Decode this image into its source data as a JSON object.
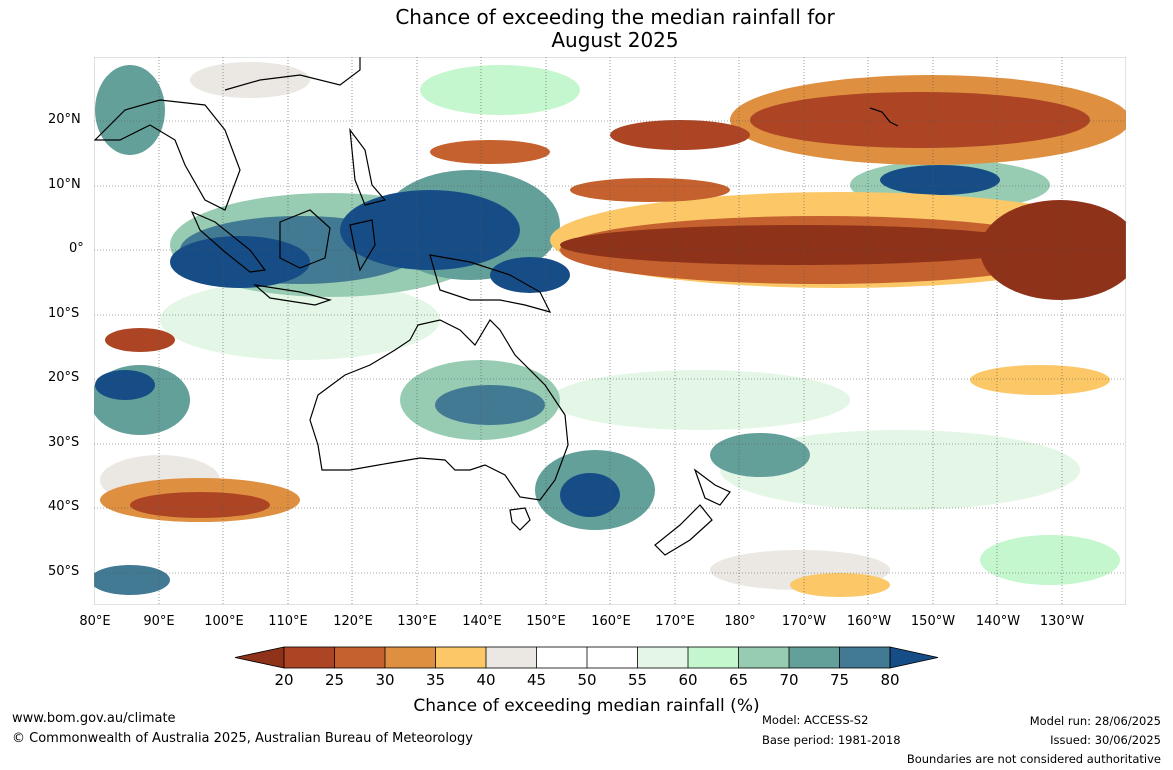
{
  "title": {
    "line1": "Chance of exceeding the median rainfall for",
    "line2": "August 2025"
  },
  "map": {
    "lat_labels": [
      "20°N",
      "10°N",
      "0°",
      "10°S",
      "20°S",
      "30°S",
      "40°S",
      "50°S"
    ],
    "lon_labels": [
      "80°E",
      "90°E",
      "100°E",
      "110°E",
      "120°E",
      "130°E",
      "140°E",
      "150°E",
      "160°E",
      "170°E",
      "180°",
      "170°W",
      "160°W",
      "150°W",
      "140°W",
      "130°W"
    ]
  },
  "colorbar": {
    "title": "Chance of exceeding median rainfall (%)",
    "ticks": [
      "20",
      "25",
      "30",
      "35",
      "40",
      "45",
      "50",
      "55",
      "60",
      "65",
      "70",
      "75",
      "80"
    ],
    "colors": {
      "below_20": "#8e3219",
      "c20_25": "#ad4524",
      "c25_30": "#c5612e",
      "c30_35": "#de9040",
      "c35_40": "#fbc767",
      "c40_45": "#ebe8e4",
      "c45_50": "#ffffff",
      "c50_55": "#ffffff",
      "c55_60": "#e4f7e7",
      "c60_65": "#c4f7cd",
      "c65_70": "#98ccb2",
      "c70_75": "#64a09a",
      "c75_80": "#427a94",
      "above_80": "#174d86"
    }
  },
  "footer": {
    "website": "www.bom.gov.au/climate",
    "copyright": "© Commonwealth of Australia 2025, Australian Bureau of Meteorology",
    "model": "Model: ACCESS-S2",
    "base_period": "Base period: 1981-2018",
    "model_run": "Model run: 28/06/2025",
    "issued": "Issued: 30/06/2025",
    "disclaimer": "Boundaries are not considered authoritative"
  }
}
